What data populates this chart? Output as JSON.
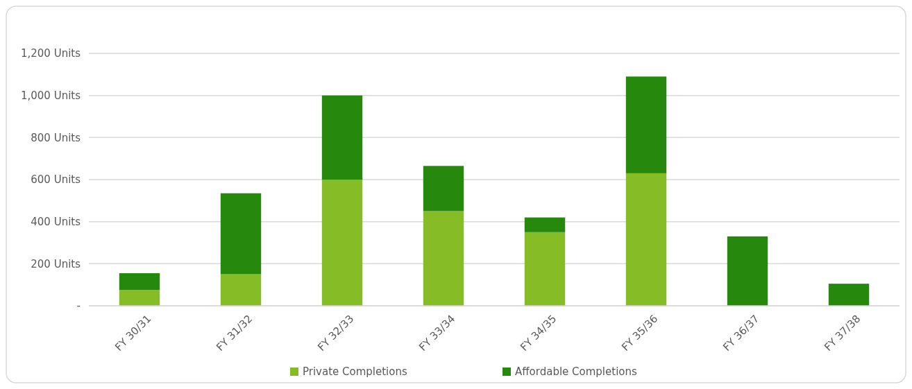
{
  "chart_data": {
    "type": "bar",
    "stacked": true,
    "categories": [
      "FY 30/31",
      "FY 31/32",
      "FY 32/33",
      "FY 33/34",
      "FY 34/35",
      "FY 35/36",
      "FY 36/37",
      "FY 37/38"
    ],
    "series": [
      {
        "name": "Private Completions",
        "color": "#86bc25",
        "values": [
          75,
          150,
          600,
          450,
          350,
          630,
          0,
          0
        ]
      },
      {
        "name": "Affordable Completions",
        "color": "#26890d",
        "values": [
          80,
          385,
          400,
          215,
          70,
          460,
          330,
          105
        ]
      }
    ],
    "ylim": [
      0,
      1200
    ],
    "yticks": [
      {
        "value": 0,
        "label": "-"
      },
      {
        "value": 200,
        "label": "200 Units"
      },
      {
        "value": 400,
        "label": "400 Units"
      },
      {
        "value": 600,
        "label": "600 Units"
      },
      {
        "value": 800,
        "label": "800 Units"
      },
      {
        "value": 1000,
        "label": "1,000 Units"
      },
      {
        "value": 1200,
        "label": "1,200 Units"
      }
    ],
    "grid": "y",
    "legend": "bottom"
  }
}
